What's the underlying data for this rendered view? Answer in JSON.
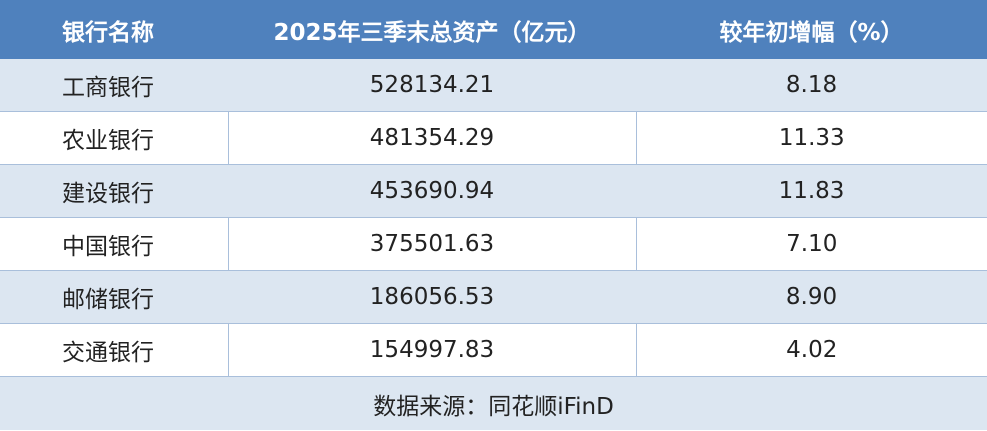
{
  "header": {
    "col1": "银行名称",
    "col2": "2025年三季末总资产（亿元）",
    "col3": "较年初增幅（%）"
  },
  "rows": [
    {
      "name": "工商银行",
      "assets": "528134.21",
      "growth": "8.18"
    },
    {
      "name": "农业银行",
      "assets": "481354.29",
      "growth": "11.33"
    },
    {
      "name": "建设银行",
      "assets": "453690.94",
      "growth": "11.83"
    },
    {
      "name": "中国银行",
      "assets": "375501.63",
      "growth": "7.10"
    },
    {
      "name": "邮储银行",
      "assets": "186056.53",
      "growth": "8.90"
    },
    {
      "name": "交通银行",
      "assets": "154997.83",
      "growth": "4.02"
    }
  ],
  "footer": {
    "source": "数据来源：同花顺iFinD"
  },
  "colors": {
    "header": "#4f81bd",
    "stripe": "#dce6f1",
    "border": "#a9bfdb"
  }
}
